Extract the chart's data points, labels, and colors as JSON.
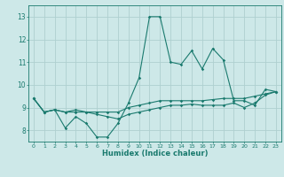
{
  "xlabel": "Humidex (Indice chaleur)",
  "x": [
    0,
    1,
    2,
    3,
    4,
    5,
    6,
    7,
    8,
    9,
    10,
    11,
    12,
    13,
    14,
    15,
    16,
    17,
    18,
    19,
    20,
    21,
    22,
    23
  ],
  "line1": [
    9.4,
    8.8,
    8.9,
    8.1,
    8.6,
    8.3,
    7.7,
    7.7,
    8.3,
    9.2,
    10.3,
    13.0,
    13.0,
    11.0,
    10.9,
    11.5,
    10.7,
    11.6,
    11.1,
    9.3,
    9.3,
    9.1,
    9.8,
    9.7
  ],
  "line2": [
    9.4,
    8.8,
    8.9,
    8.8,
    8.8,
    8.8,
    8.8,
    8.8,
    8.8,
    9.0,
    9.1,
    9.2,
    9.3,
    9.3,
    9.3,
    9.3,
    9.3,
    9.35,
    9.4,
    9.4,
    9.4,
    9.5,
    9.6,
    9.7
  ],
  "line3": [
    9.4,
    8.8,
    8.9,
    8.8,
    8.9,
    8.8,
    8.7,
    8.6,
    8.5,
    8.7,
    8.8,
    8.9,
    9.0,
    9.1,
    9.1,
    9.15,
    9.1,
    9.1,
    9.1,
    9.2,
    9.0,
    9.2,
    9.55,
    9.7
  ],
  "line_color": "#1a7a6e",
  "bg_color": "#cde8e8",
  "grid_color": "#aed0d0",
  "ylim": [
    7.5,
    13.5
  ],
  "xlim": [
    -0.5,
    23.5
  ],
  "yticks": [
    8,
    9,
    10,
    11,
    12,
    13
  ],
  "xticks": [
    0,
    1,
    2,
    3,
    4,
    5,
    6,
    7,
    8,
    9,
    10,
    11,
    12,
    13,
    14,
    15,
    16,
    17,
    18,
    19,
    20,
    21,
    22,
    23
  ]
}
